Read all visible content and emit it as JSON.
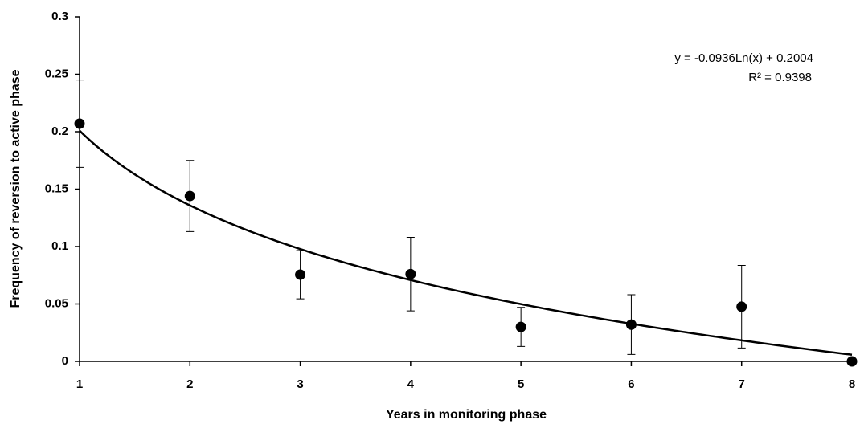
{
  "chart_data": {
    "type": "scatter",
    "x_label": "Years in monitoring phase",
    "y_label": "Frequency of reversion to active phase",
    "x": [
      1,
      2,
      3,
      4,
      5,
      6,
      7,
      8
    ],
    "values": [
      0.207,
      0.144,
      0.0755,
      0.076,
      0.03,
      0.032,
      0.0476,
      0
    ],
    "errors": [
      0.038,
      0.031,
      0.021,
      0.032,
      0.017,
      0.026,
      0.036,
      null
    ],
    "color": "#000000",
    "trendline": "log",
    "annotations": [
      "y = -0.0936Ln(x) + 0.2004",
      "R² = 0.9398"
    ],
    "xlim": [
      1,
      8
    ],
    "xticks": [
      1,
      2,
      3,
      4,
      5,
      6,
      7,
      8
    ],
    "ylim": [
      0,
      0.3
    ],
    "yticks": [
      0,
      0.05,
      0.1,
      0.15,
      0.2,
      0.25,
      0.3
    ],
    "grid": false
  }
}
